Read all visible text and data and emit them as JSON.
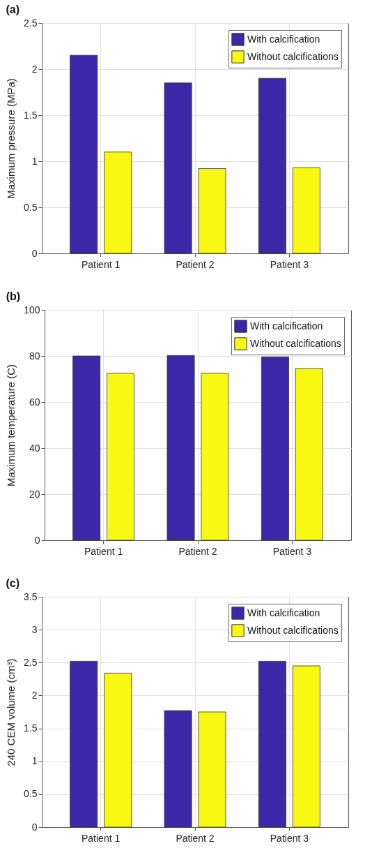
{
  "chart_data": [
    {
      "type": "bar",
      "title": "(a)",
      "ylabel": "Maximum pressure (MPa)",
      "categories": [
        "Patient 1",
        "Patient 2",
        "Patient 3"
      ],
      "series": [
        {
          "name": "With calcification",
          "color": "#3b27a8",
          "values": [
            2.15,
            1.85,
            1.9
          ]
        },
        {
          "name": "Without calcifications",
          "color": "#f8f812",
          "values": [
            1.1,
            0.92,
            0.93
          ]
        }
      ],
      "ylim": [
        0,
        2.5
      ],
      "yticks": [
        0,
        0.5,
        1,
        1.5,
        2,
        2.5
      ],
      "grid": true,
      "legend": "top right"
    },
    {
      "type": "bar",
      "title": "(b)",
      "ylabel": "Maximum temperature (C)",
      "categories": [
        "Patient 1",
        "Patient 2",
        "Patient 3"
      ],
      "series": [
        {
          "name": "With calcification",
          "color": "#3b27a8",
          "values": [
            80,
            80.2,
            79.6
          ]
        },
        {
          "name": "Without calcifications",
          "color": "#f8f812",
          "values": [
            72.5,
            72.5,
            74.6
          ]
        }
      ],
      "ylim": [
        0,
        100
      ],
      "yticks": [
        0,
        20,
        40,
        60,
        80,
        100
      ],
      "grid": true,
      "legend": "top right"
    },
    {
      "type": "bar",
      "title": "(c)",
      "ylabel": "240 CEM volume (cm³)",
      "categories": [
        "Patient 1",
        "Patient 2",
        "Patient 3"
      ],
      "series": [
        {
          "name": "With calcification",
          "color": "#3b27a8",
          "values": [
            2.52,
            1.77,
            2.52
          ]
        },
        {
          "name": "Without calcifications",
          "color": "#f8f812",
          "values": [
            2.34,
            1.75,
            2.45
          ]
        }
      ],
      "ylim": [
        0,
        3.5
      ],
      "yticks": [
        0,
        0.5,
        1,
        1.5,
        2,
        2.5,
        3,
        3.5
      ],
      "grid": true,
      "legend": "top right"
    }
  ]
}
